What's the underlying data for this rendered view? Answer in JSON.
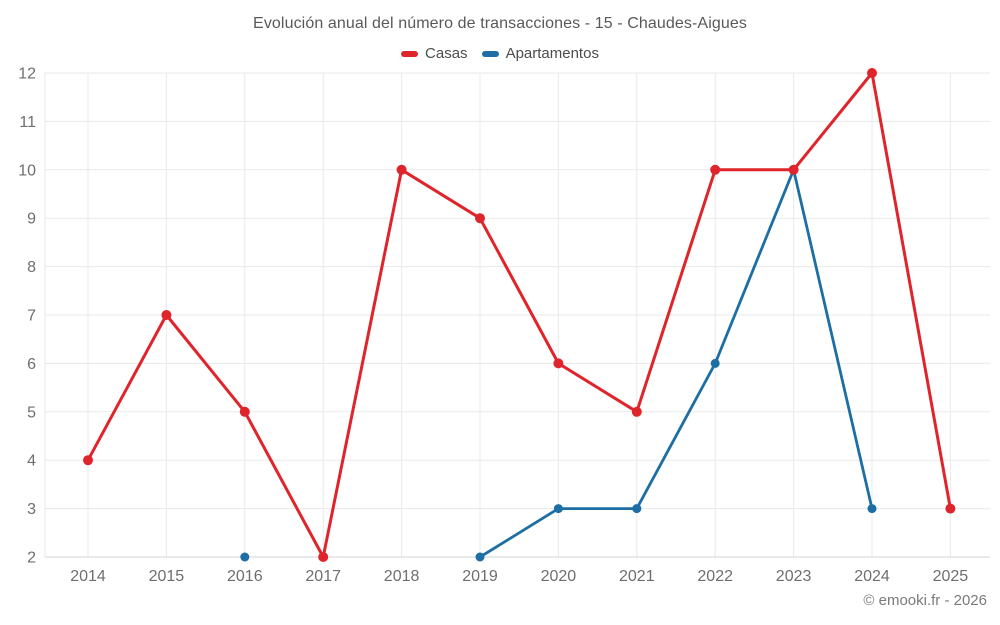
{
  "header": {
    "title": "Evolución anual del número de transacciones - 15 - Chaudes-Aigues"
  },
  "legend": {
    "items": [
      {
        "label": "Casas",
        "color": "#e0242b"
      },
      {
        "label": "Apartamentos",
        "color": "#1c6ea4"
      }
    ]
  },
  "footer": {
    "credit": "© emooki.fr - 2026"
  },
  "chart_data": {
    "type": "line",
    "title": "Evolución anual del número de transacciones - 15 - Chaudes-Aigues",
    "categories": [
      "2014",
      "2015",
      "2016",
      "2017",
      "2018",
      "2019",
      "2020",
      "2021",
      "2022",
      "2023",
      "2024",
      "2025"
    ],
    "series": [
      {
        "name": "Casas",
        "color": "#e0242b",
        "values": [
          4,
          7,
          5,
          2,
          10,
          9,
          6,
          5,
          10,
          10,
          12,
          3
        ]
      },
      {
        "name": "Apartamentos",
        "color": "#1c6ea4",
        "values": [
          null,
          null,
          2,
          null,
          null,
          2,
          3,
          3,
          6,
          10,
          3,
          null
        ]
      }
    ],
    "xlabel": "",
    "ylabel": "",
    "ylim": [
      2,
      12
    ],
    "ytick_step": 1,
    "grid": true,
    "legend_position": "top",
    "credit": "© emooki.fr - 2026"
  }
}
